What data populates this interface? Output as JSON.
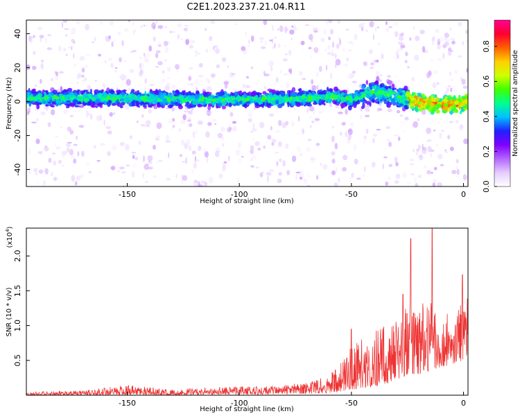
{
  "title": "C2E1.2023.237.21.04.R11",
  "chart_data": [
    {
      "type": "heatmap",
      "xlabel": "Height of straight line (km)",
      "ylabel": "Frequency (Hz)",
      "xlim": [
        -195,
        2
      ],
      "ylim": [
        -50,
        48
      ],
      "xticks": [
        -150,
        -100,
        -50,
        0
      ],
      "yticks": [
        -40,
        -20,
        0,
        20,
        40
      ],
      "colorbar": {
        "label": "Normalized spectral amplitude",
        "range": [
          0,
          0.95
        ],
        "ticks": [
          "0.0",
          "0.2",
          "0.4",
          "0.6",
          "0.8"
        ],
        "tick_values": [
          0.0,
          0.2,
          0.4,
          0.6,
          0.8
        ],
        "colormap": [
          "#ffffff",
          "#e6ccff",
          "#b266ff",
          "#8000ff",
          "#2020ff",
          "#00c0ff",
          "#00ff90",
          "#40ff00",
          "#d0ff00",
          "#ffd000",
          "#ff6000",
          "#ff0030",
          "#ff0090"
        ]
      },
      "ridge_center": [
        {
          "x": -195,
          "y": 2
        },
        {
          "x": -150,
          "y": 2
        },
        {
          "x": -100,
          "y": 1
        },
        {
          "x": -70,
          "y": 2
        },
        {
          "x": -58,
          "y": 3
        },
        {
          "x": -50,
          "y": 1
        },
        {
          "x": -40,
          "y": 6
        },
        {
          "x": -30,
          "y": 3
        },
        {
          "x": -20,
          "y": 0
        },
        {
          "x": -10,
          "y": -2
        },
        {
          "x": 0,
          "y": -1
        }
      ],
      "grid": false
    },
    {
      "type": "line",
      "xlabel": "Height of straight line (km)",
      "ylabel": "SNR (10 * v/v)",
      "y_scale_note": "(x10^4)",
      "xlim": [
        -195,
        2
      ],
      "ylim": [
        0,
        2.4
      ],
      "xticks": [
        -150,
        -100,
        -50,
        0
      ],
      "yticks": [
        "0.5",
        "1.0",
        "1.5",
        "2.0"
      ],
      "ytick_values": [
        0.5,
        1.0,
        1.5,
        2.0
      ],
      "color": "#ee3333",
      "envelope": [
        {
          "x": -195,
          "low": 0.0,
          "high": 0.05
        },
        {
          "x": -170,
          "low": 0.0,
          "high": 0.07
        },
        {
          "x": -150,
          "low": 0.01,
          "high": 0.15
        },
        {
          "x": -130,
          "low": 0.0,
          "high": 0.08
        },
        {
          "x": -110,
          "low": 0.01,
          "high": 0.12
        },
        {
          "x": -90,
          "low": 0.01,
          "high": 0.13
        },
        {
          "x": -70,
          "low": 0.02,
          "high": 0.18
        },
        {
          "x": -60,
          "low": 0.03,
          "high": 0.3
        },
        {
          "x": -55,
          "low": 0.05,
          "high": 0.45
        },
        {
          "x": -50,
          "low": 0.08,
          "high": 0.7
        },
        {
          "x": -45,
          "low": 0.1,
          "high": 0.85
        },
        {
          "x": -40,
          "low": 0.12,
          "high": 0.95
        },
        {
          "x": -35,
          "low": 0.15,
          "high": 1.0
        },
        {
          "x": -30,
          "low": 0.2,
          "high": 1.1
        },
        {
          "x": -25,
          "low": 0.3,
          "high": 1.45
        },
        {
          "x": -20,
          "low": 0.3,
          "high": 1.3
        },
        {
          "x": -15,
          "low": 0.35,
          "high": 1.4
        },
        {
          "x": -10,
          "low": 0.4,
          "high": 1.2
        },
        {
          "x": -5,
          "low": 0.45,
          "high": 1.25
        },
        {
          "x": 0,
          "low": 0.5,
          "high": 1.35
        },
        {
          "x": 2,
          "low": 0.6,
          "high": 1.4
        }
      ],
      "spikes": [
        {
          "x": -23.5,
          "y": 2.25
        },
        {
          "x": -14,
          "y": 2.4
        },
        {
          "x": -0.5,
          "y": 1.73
        },
        {
          "x": -27,
          "y": 1.45
        },
        {
          "x": -50,
          "y": 0.95
        }
      ],
      "grid": false
    }
  ]
}
